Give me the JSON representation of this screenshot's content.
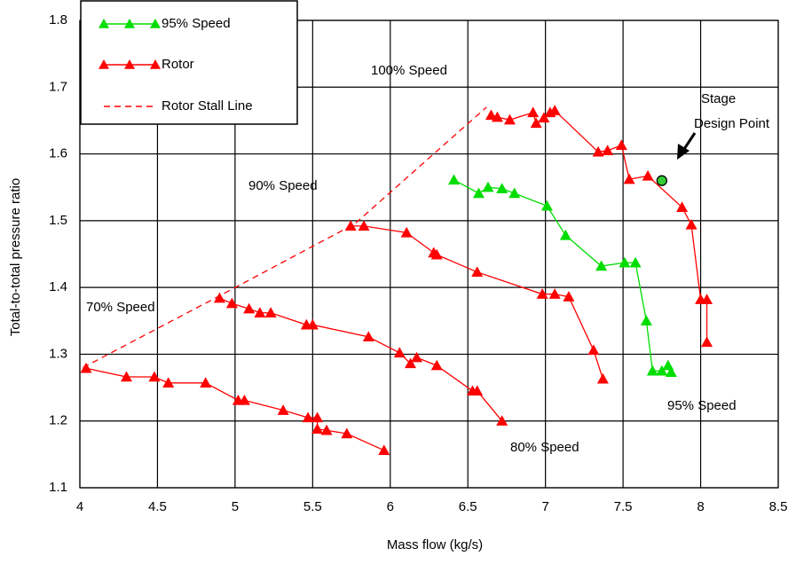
{
  "chart_data": {
    "type": "scatter",
    "xlabel": "Mass flow (kg/s)",
    "ylabel": "Total-to-total pressure ratio",
    "xlim": [
      4,
      8.5
    ],
    "ylim": [
      1.1,
      1.8
    ],
    "xticks": [
      4,
      4.5,
      5,
      5.5,
      6,
      6.5,
      7,
      7.5,
      8,
      8.5
    ],
    "yticks": [
      1.1,
      1.2,
      1.3,
      1.4,
      1.5,
      1.6,
      1.7,
      1.8
    ],
    "grid": true,
    "legend": "top-left",
    "series": [
      {
        "name": "95% Speed",
        "color": "#00dd00",
        "marker": "triangle",
        "dash": false,
        "x": [
          6.41,
          6.57,
          6.63,
          6.72,
          6.8,
          7.01,
          7.13,
          7.36,
          7.51,
          7.58,
          7.65,
          7.69,
          7.75,
          7.79,
          7.81
        ],
        "values": [
          1.561,
          1.541,
          1.55,
          1.548,
          1.541,
          1.522,
          1.478,
          1.432,
          1.437,
          1.437,
          1.35,
          1.275,
          1.275,
          1.283,
          1.273
        ]
      },
      {
        "name": "Rotor",
        "color": "#ff0000",
        "marker": "triangle",
        "dash": false,
        "x": [
          4.04,
          4.3,
          4.48,
          4.57,
          4.81,
          5.02,
          5.06,
          5.31,
          5.47,
          5.53,
          5.53,
          5.59,
          5.72,
          5.96,
          null,
          4.9,
          4.98,
          5.09,
          5.16,
          5.23,
          5.46,
          5.5,
          5.86,
          6.06,
          6.13,
          6.17,
          6.3,
          6.53,
          6.56,
          6.72,
          null,
          5.745,
          5.83,
          6.105,
          6.28,
          6.3,
          6.56,
          6.98,
          7.06,
          7.15,
          7.31,
          7.37,
          null,
          6.65,
          6.69,
          6.77,
          6.92,
          6.94,
          6.99,
          7.03,
          7.06,
          7.34,
          7.4,
          7.49,
          7.54,
          7.66,
          7.88,
          7.94,
          8.0,
          8.04,
          8.04
        ],
        "values": [
          1.279,
          1.266,
          1.266,
          1.257,
          1.257,
          1.231,
          1.231,
          1.216,
          1.205,
          1.205,
          1.188,
          1.186,
          1.181,
          1.156,
          null,
          1.384,
          1.376,
          1.368,
          1.362,
          1.362,
          1.344,
          1.344,
          1.326,
          1.302,
          1.286,
          1.295,
          1.283,
          1.245,
          1.245,
          1.2,
          null,
          1.492,
          1.492,
          1.482,
          1.452,
          1.449,
          1.423,
          1.39,
          1.39,
          1.386,
          1.306,
          1.263,
          null,
          1.658,
          1.655,
          1.651,
          1.662,
          1.646,
          1.654,
          1.662,
          1.665,
          1.603,
          1.605,
          1.613,
          1.562,
          1.567,
          1.52,
          1.494,
          1.382,
          1.382,
          1.318
        ]
      },
      {
        "name": "Rotor Stall Line",
        "color": "#ff0000",
        "marker": "none",
        "dash": true,
        "x": [
          4.02,
          4.88,
          5.77,
          6.62
        ],
        "values": [
          1.28,
          1.385,
          1.495,
          1.67
        ]
      }
    ],
    "annotations": [
      "100% Speed",
      "90% Speed",
      "70% Speed",
      "80% Speed",
      "95% Speed"
    ],
    "design_point": {
      "label": [
        "Stage",
        "Design Point"
      ],
      "x": 7.75,
      "y": 1.56,
      "color": "#33cc33"
    }
  }
}
